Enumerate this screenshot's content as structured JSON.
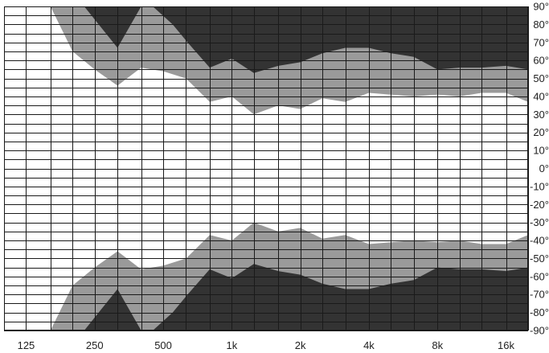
{
  "chart_data": {
    "type": "heatmap",
    "subtype": "directivity-isobar",
    "title": "",
    "xlabel": "",
    "ylabel": "",
    "x_scale": "log",
    "xlim": [
      100,
      20000
    ],
    "ylim": [
      -90,
      90
    ],
    "grid": true,
    "x_tick_values": [
      125,
      250,
      500,
      1000,
      2000,
      4000,
      8000,
      16000
    ],
    "x_tick_labels": [
      "125",
      "250",
      "500",
      "1k",
      "2k",
      "4k",
      "8k",
      "16k"
    ],
    "y_tick_values": [
      90,
      80,
      70,
      60,
      50,
      40,
      30,
      20,
      10,
      0,
      -10,
      -20,
      -30,
      -40,
      -50,
      -60,
      -70,
      -80,
      -90
    ],
    "y_tick_labels": [
      "90°",
      "80°",
      "70°",
      "60°",
      "50°",
      "40°",
      "30°",
      "20°",
      "10°",
      "0°",
      "-10°",
      "-20°",
      "-30°",
      "-40°",
      "-50°",
      "-60°",
      "-70°",
      "-80°",
      "-90°"
    ],
    "colors": {
      "background": "#ffffff",
      "light_band": "#9a9a9a",
      "dark_band": "#333333",
      "grid": "#1a1a1a",
      "text": "#222222"
    },
    "contours": {
      "light_upper": [
        [
          160,
          90
        ],
        [
          200,
          65
        ],
        [
          250,
          55
        ],
        [
          315,
          46
        ],
        [
          400,
          56
        ],
        [
          500,
          54
        ],
        [
          630,
          50
        ],
        [
          800,
          37
        ],
        [
          1000,
          40
        ],
        [
          1250,
          30
        ],
        [
          1600,
          35
        ],
        [
          2000,
          33
        ],
        [
          2500,
          39
        ],
        [
          3150,
          37
        ],
        [
          4000,
          42
        ],
        [
          5000,
          41
        ],
        [
          6300,
          40
        ],
        [
          8000,
          41
        ],
        [
          10000,
          40
        ],
        [
          12500,
          42
        ],
        [
          16000,
          42
        ],
        [
          20000,
          37
        ]
      ],
      "dark_upper": [
        [
          450,
          90
        ],
        [
          550,
          80
        ],
        [
          640,
          70
        ],
        [
          800,
          56
        ],
        [
          1000,
          61
        ],
        [
          1250,
          53
        ],
        [
          1600,
          57
        ],
        [
          2000,
          59
        ],
        [
          2500,
          64
        ],
        [
          3150,
          67
        ],
        [
          4000,
          67
        ],
        [
          5000,
          64
        ],
        [
          6300,
          62
        ],
        [
          8000,
          55
        ],
        [
          10000,
          56
        ],
        [
          12500,
          56
        ],
        [
          16000,
          57
        ],
        [
          20000,
          55
        ]
      ],
      "dark_lobe_upper": [
        [
          225,
          90
        ],
        [
          315,
          67
        ],
        [
          400,
          90
        ]
      ],
      "light_lower": [
        [
          160,
          -90
        ],
        [
          200,
          -65
        ],
        [
          250,
          -55
        ],
        [
          315,
          -46
        ],
        [
          400,
          -56
        ],
        [
          500,
          -54
        ],
        [
          630,
          -50
        ],
        [
          800,
          -37
        ],
        [
          1000,
          -40
        ],
        [
          1250,
          -30
        ],
        [
          1600,
          -35
        ],
        [
          2000,
          -33
        ],
        [
          2500,
          -39
        ],
        [
          3150,
          -37
        ],
        [
          4000,
          -42
        ],
        [
          5000,
          -41
        ],
        [
          6300,
          -40
        ],
        [
          8000,
          -41
        ],
        [
          10000,
          -40
        ],
        [
          12500,
          -42
        ],
        [
          16000,
          -42
        ],
        [
          20000,
          -37
        ]
      ],
      "dark_lower": [
        [
          450,
          -90
        ],
        [
          550,
          -80
        ],
        [
          640,
          -70
        ],
        [
          800,
          -56
        ],
        [
          1000,
          -61
        ],
        [
          1250,
          -53
        ],
        [
          1600,
          -57
        ],
        [
          2000,
          -59
        ],
        [
          2500,
          -64
        ],
        [
          3150,
          -67
        ],
        [
          4000,
          -67
        ],
        [
          5000,
          -64
        ],
        [
          6300,
          -62
        ],
        [
          8000,
          -55
        ],
        [
          10000,
          -56
        ],
        [
          12500,
          -56
        ],
        [
          16000,
          -57
        ],
        [
          20000,
          -55
        ]
      ],
      "dark_lobe_lower": [
        [
          225,
          -90
        ],
        [
          315,
          -67
        ],
        [
          400,
          -90
        ]
      ]
    }
  }
}
